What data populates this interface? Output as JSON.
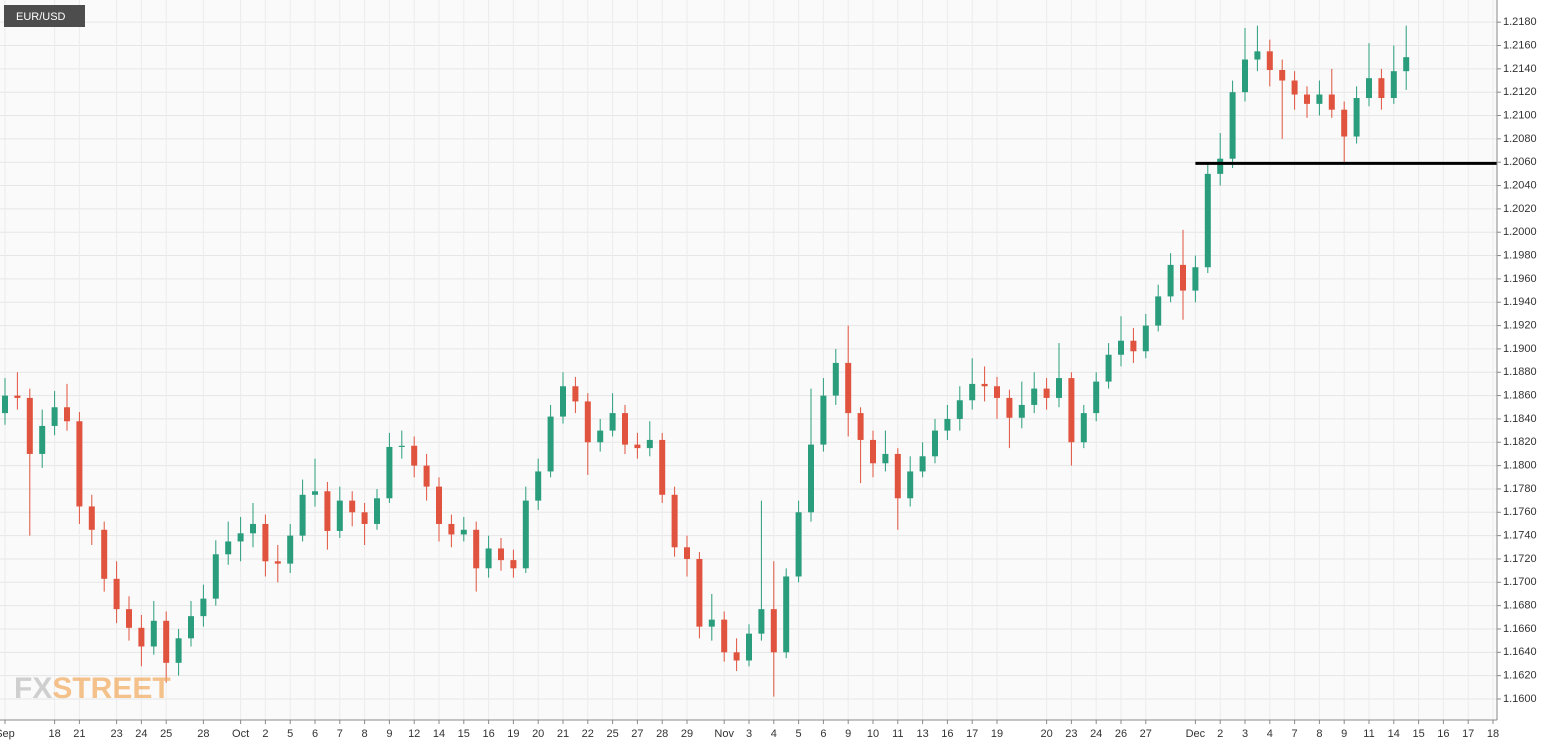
{
  "chart_data": {
    "type": "candlestick",
    "title": "EUR/USD",
    "watermark": [
      "FX",
      "STREET"
    ],
    "categories": [
      "Sep",
      null,
      null,
      null,
      "18",
      null,
      "21",
      null,
      null,
      "23",
      null,
      "24",
      null,
      "25",
      null,
      null,
      "28",
      null,
      null,
      "Oct",
      null,
      "2",
      null,
      "5",
      null,
      "6",
      null,
      "7",
      null,
      "8",
      null,
      "9",
      null,
      "12",
      null,
      "14",
      null,
      "15",
      null,
      "16",
      null,
      "19",
      null,
      "20",
      null,
      "21",
      null,
      "22",
      null,
      "25",
      null,
      "27",
      null,
      "28",
      null,
      "29",
      null,
      null,
      "Nov",
      null,
      "3",
      null,
      "4",
      null,
      "5",
      null,
      "6",
      null,
      "9",
      null,
      "10",
      null,
      "11",
      null,
      "13",
      null,
      "16",
      null,
      "17",
      null,
      "19",
      null,
      null,
      null,
      "20",
      null,
      "23",
      null,
      "24",
      null,
      "26",
      null,
      "27",
      null,
      null,
      null,
      "Dec",
      null,
      "2",
      null,
      "3",
      null,
      "4",
      null,
      "7",
      null,
      "8",
      null,
      "9",
      null,
      "11",
      null,
      "14",
      null,
      "15",
      null,
      "16",
      null,
      "17",
      null,
      "18"
    ],
    "ohlc": [
      [
        1.1845,
        1.1875,
        1.1835,
        1.186
      ],
      [
        1.186,
        1.188,
        1.1848,
        1.1858
      ],
      [
        1.1858,
        1.1866,
        1.174,
        1.181
      ],
      [
        1.181,
        1.1848,
        1.1798,
        1.1834
      ],
      [
        1.1834,
        1.1864,
        1.1826,
        1.185
      ],
      [
        1.185,
        1.187,
        1.183,
        1.1838
      ],
      [
        1.1838,
        1.1846,
        1.175,
        1.1765
      ],
      [
        1.1765,
        1.1775,
        1.1732,
        1.1745
      ],
      [
        1.1745,
        1.1752,
        1.1692,
        1.1703
      ],
      [
        1.1703,
        1.1718,
        1.1665,
        1.1677
      ],
      [
        1.1677,
        1.1688,
        1.165,
        1.1661
      ],
      [
        1.1661,
        1.1672,
        1.1628,
        1.1645
      ],
      [
        1.1645,
        1.1684,
        1.1638,
        1.1667
      ],
      [
        1.1667,
        1.1675,
        1.1614,
        1.1631
      ],
      [
        1.1631,
        1.166,
        1.162,
        1.1652
      ],
      [
        1.1652,
        1.1684,
        1.1645,
        1.1671
      ],
      [
        1.1671,
        1.1698,
        1.1662,
        1.1686
      ],
      [
        1.1686,
        1.1736,
        1.168,
        1.1724
      ],
      [
        1.1724,
        1.1752,
        1.1715,
        1.1735
      ],
      [
        1.1735,
        1.1756,
        1.1718,
        1.1742
      ],
      [
        1.1742,
        1.1768,
        1.173,
        1.175
      ],
      [
        1.175,
        1.1758,
        1.1705,
        1.1718
      ],
      [
        1.1718,
        1.1732,
        1.17,
        1.1716
      ],
      [
        1.1716,
        1.175,
        1.1708,
        1.174
      ],
      [
        1.174,
        1.1788,
        1.1735,
        1.1775
      ],
      [
        1.1775,
        1.1806,
        1.1765,
        1.1778
      ],
      [
        1.1778,
        1.1786,
        1.1728,
        1.1744
      ],
      [
        1.1744,
        1.1782,
        1.1738,
        1.177
      ],
      [
        1.177,
        1.1778,
        1.1748,
        1.176
      ],
      [
        1.176,
        1.1768,
        1.1732,
        1.175
      ],
      [
        1.175,
        1.178,
        1.1745,
        1.1772
      ],
      [
        1.1772,
        1.1828,
        1.1768,
        1.1816
      ],
      [
        1.1816,
        1.183,
        1.1806,
        1.1817
      ],
      [
        1.1817,
        1.1825,
        1.179,
        1.18
      ],
      [
        1.18,
        1.181,
        1.177,
        1.1782
      ],
      [
        1.1782,
        1.179,
        1.1735,
        1.175
      ],
      [
        1.175,
        1.1758,
        1.173,
        1.1741
      ],
      [
        1.1741,
        1.1756,
        1.1735,
        1.1745
      ],
      [
        1.1745,
        1.1752,
        1.1692,
        1.1712
      ],
      [
        1.1712,
        1.174,
        1.1704,
        1.1729
      ],
      [
        1.1729,
        1.1738,
        1.171,
        1.1719
      ],
      [
        1.1719,
        1.1728,
        1.1704,
        1.1712
      ],
      [
        1.1712,
        1.1782,
        1.1708,
        1.177
      ],
      [
        1.177,
        1.1806,
        1.1762,
        1.1795
      ],
      [
        1.1795,
        1.1852,
        1.179,
        1.1842
      ],
      [
        1.1842,
        1.188,
        1.1836,
        1.1868
      ],
      [
        1.1868,
        1.1876,
        1.1845,
        1.1855
      ],
      [
        1.1855,
        1.1862,
        1.1792,
        1.182
      ],
      [
        1.182,
        1.184,
        1.1812,
        1.183
      ],
      [
        1.183,
        1.1862,
        1.1825,
        1.1845
      ],
      [
        1.1845,
        1.1852,
        1.181,
        1.1818
      ],
      [
        1.1818,
        1.1828,
        1.1806,
        1.1815
      ],
      [
        1.1815,
        1.1838,
        1.1808,
        1.1822
      ],
      [
        1.1822,
        1.1828,
        1.1768,
        1.1775
      ],
      [
        1.1775,
        1.1782,
        1.1722,
        1.173
      ],
      [
        1.173,
        1.174,
        1.1705,
        1.172
      ],
      [
        1.172,
        1.1726,
        1.1652,
        1.1662
      ],
      [
        1.1662,
        1.169,
        1.165,
        1.1668
      ],
      [
        1.1668,
        1.1675,
        1.1632,
        1.164
      ],
      [
        1.164,
        1.1652,
        1.1624,
        1.1633
      ],
      [
        1.1633,
        1.1664,
        1.1628,
        1.1656
      ],
      [
        1.1656,
        1.177,
        1.165,
        1.1677
      ],
      [
        1.1677,
        1.1718,
        1.1602,
        1.164
      ],
      [
        1.164,
        1.1712,
        1.1635,
        1.1705
      ],
      [
        1.1705,
        1.177,
        1.17,
        1.176
      ],
      [
        1.176,
        1.1866,
        1.1752,
        1.1818
      ],
      [
        1.1818,
        1.1875,
        1.1812,
        1.186
      ],
      [
        1.186,
        1.19,
        1.1852,
        1.1888
      ],
      [
        1.1888,
        1.192,
        1.1825,
        1.1845
      ],
      [
        1.1845,
        1.185,
        1.1785,
        1.1822
      ],
      [
        1.1822,
        1.183,
        1.179,
        1.1802
      ],
      [
        1.1802,
        1.183,
        1.1795,
        1.181
      ],
      [
        1.181,
        1.1815,
        1.1745,
        1.1772
      ],
      [
        1.1772,
        1.1808,
        1.1765,
        1.1795
      ],
      [
        1.1795,
        1.182,
        1.179,
        1.1808
      ],
      [
        1.1808,
        1.184,
        1.1802,
        1.183
      ],
      [
        1.183,
        1.1852,
        1.1822,
        1.184
      ],
      [
        1.184,
        1.1868,
        1.183,
        1.1856
      ],
      [
        1.1856,
        1.1892,
        1.1848,
        1.187
      ],
      [
        1.187,
        1.1885,
        1.1855,
        1.1868
      ],
      [
        1.1868,
        1.1876,
        1.184,
        1.1858
      ],
      [
        1.1858,
        1.1865,
        1.1815,
        1.1841
      ],
      [
        1.1841,
        1.1872,
        1.1832,
        1.1852
      ],
      [
        1.1852,
        1.188,
        1.1845,
        1.1866
      ],
      [
        1.1866,
        1.1875,
        1.1848,
        1.1858
      ],
      [
        1.1858,
        1.1905,
        1.185,
        1.1875
      ],
      [
        1.1875,
        1.188,
        1.18,
        1.182
      ],
      [
        1.182,
        1.1852,
        1.1815,
        1.1845
      ],
      [
        1.1845,
        1.188,
        1.1838,
        1.1872
      ],
      [
        1.1872,
        1.1905,
        1.1866,
        1.1895
      ],
      [
        1.1895,
        1.1928,
        1.1885,
        1.1907
      ],
      [
        1.1907,
        1.1918,
        1.1888,
        1.1898
      ],
      [
        1.1898,
        1.193,
        1.1892,
        1.192
      ],
      [
        1.192,
        1.1955,
        1.1915,
        1.1945
      ],
      [
        1.1945,
        1.1982,
        1.194,
        1.1972
      ],
      [
        1.1972,
        1.2002,
        1.1925,
        1.195
      ],
      [
        1.195,
        1.198,
        1.194,
        1.197
      ],
      [
        1.197,
        1.206,
        1.1965,
        1.205
      ],
      [
        1.205,
        1.2085,
        1.204,
        1.2063
      ],
      [
        1.2063,
        1.213,
        1.2055,
        1.212
      ],
      [
        1.212,
        1.2175,
        1.2112,
        1.2148
      ],
      [
        1.2148,
        1.2177,
        1.2138,
        1.2155
      ],
      [
        1.2155,
        1.2165,
        1.2125,
        1.2139
      ],
      [
        1.2139,
        1.2148,
        1.208,
        1.213
      ],
      [
        1.213,
        1.2138,
        1.2105,
        1.2118
      ],
      [
        1.2118,
        1.2125,
        1.2098,
        1.211
      ],
      [
        1.211,
        1.213,
        1.21,
        1.2118
      ],
      [
        1.2118,
        1.214,
        1.2098,
        1.2105
      ],
      [
        1.2105,
        1.2112,
        1.206,
        1.2082
      ],
      [
        1.2082,
        1.2125,
        1.2076,
        1.2115
      ],
      [
        1.2115,
        1.2162,
        1.2108,
        1.2132
      ],
      [
        1.2132,
        1.214,
        1.2105,
        1.2115
      ],
      [
        1.2115,
        1.216,
        1.211,
        1.2138
      ],
      [
        1.2138,
        1.2177,
        1.2122,
        1.215
      ],
      null,
      null,
      null,
      null,
      null,
      null,
      null
    ],
    "up_color": "#2a9d7c",
    "down_color": "#e0533e",
    "ylim": [
      1.1582,
      1.2199
    ],
    "yticks": [
      {
        "value": 1.16,
        "label": "1.1600"
      },
      {
        "value": 1.162,
        "label": "1.1620"
      },
      {
        "value": 1.164,
        "label": "1.1640"
      },
      {
        "value": 1.166,
        "label": "1.1660"
      },
      {
        "value": 1.168,
        "label": "1.1680"
      },
      {
        "value": 1.17,
        "label": "1.1700"
      },
      {
        "value": 1.172,
        "label": "1.1720"
      },
      {
        "value": 1.174,
        "label": "1.1740"
      },
      {
        "value": 1.176,
        "label": "1.1760"
      },
      {
        "value": 1.178,
        "label": "1.1780"
      },
      {
        "value": 1.18,
        "label": "1.1800"
      },
      {
        "value": 1.182,
        "label": "1.1820"
      },
      {
        "value": 1.184,
        "label": "1.1840"
      },
      {
        "value": 1.186,
        "label": "1.1860"
      },
      {
        "value": 1.188,
        "label": "1.1880"
      },
      {
        "value": 1.19,
        "label": "1.1900"
      },
      {
        "value": 1.192,
        "label": "1.1920"
      },
      {
        "value": 1.194,
        "label": "1.1940"
      },
      {
        "value": 1.196,
        "label": "1.1960"
      },
      {
        "value": 1.198,
        "label": "1.1980"
      },
      {
        "value": 1.2,
        "label": "1.2000"
      },
      {
        "value": 1.202,
        "label": "1.2020"
      },
      {
        "value": 1.204,
        "label": "1.2040"
      },
      {
        "value": 1.206,
        "label": "1.2060"
      },
      {
        "value": 1.208,
        "label": "1.2080"
      },
      {
        "value": 1.21,
        "label": "1.2100"
      },
      {
        "value": 1.212,
        "label": "1.2120"
      },
      {
        "value": 1.214,
        "label": "1.2140"
      },
      {
        "value": 1.216,
        "label": "1.2160"
      },
      {
        "value": 1.218,
        "label": "1.2180"
      }
    ],
    "grid": true,
    "support_level": 1.2059,
    "support_start": "Dec"
  }
}
